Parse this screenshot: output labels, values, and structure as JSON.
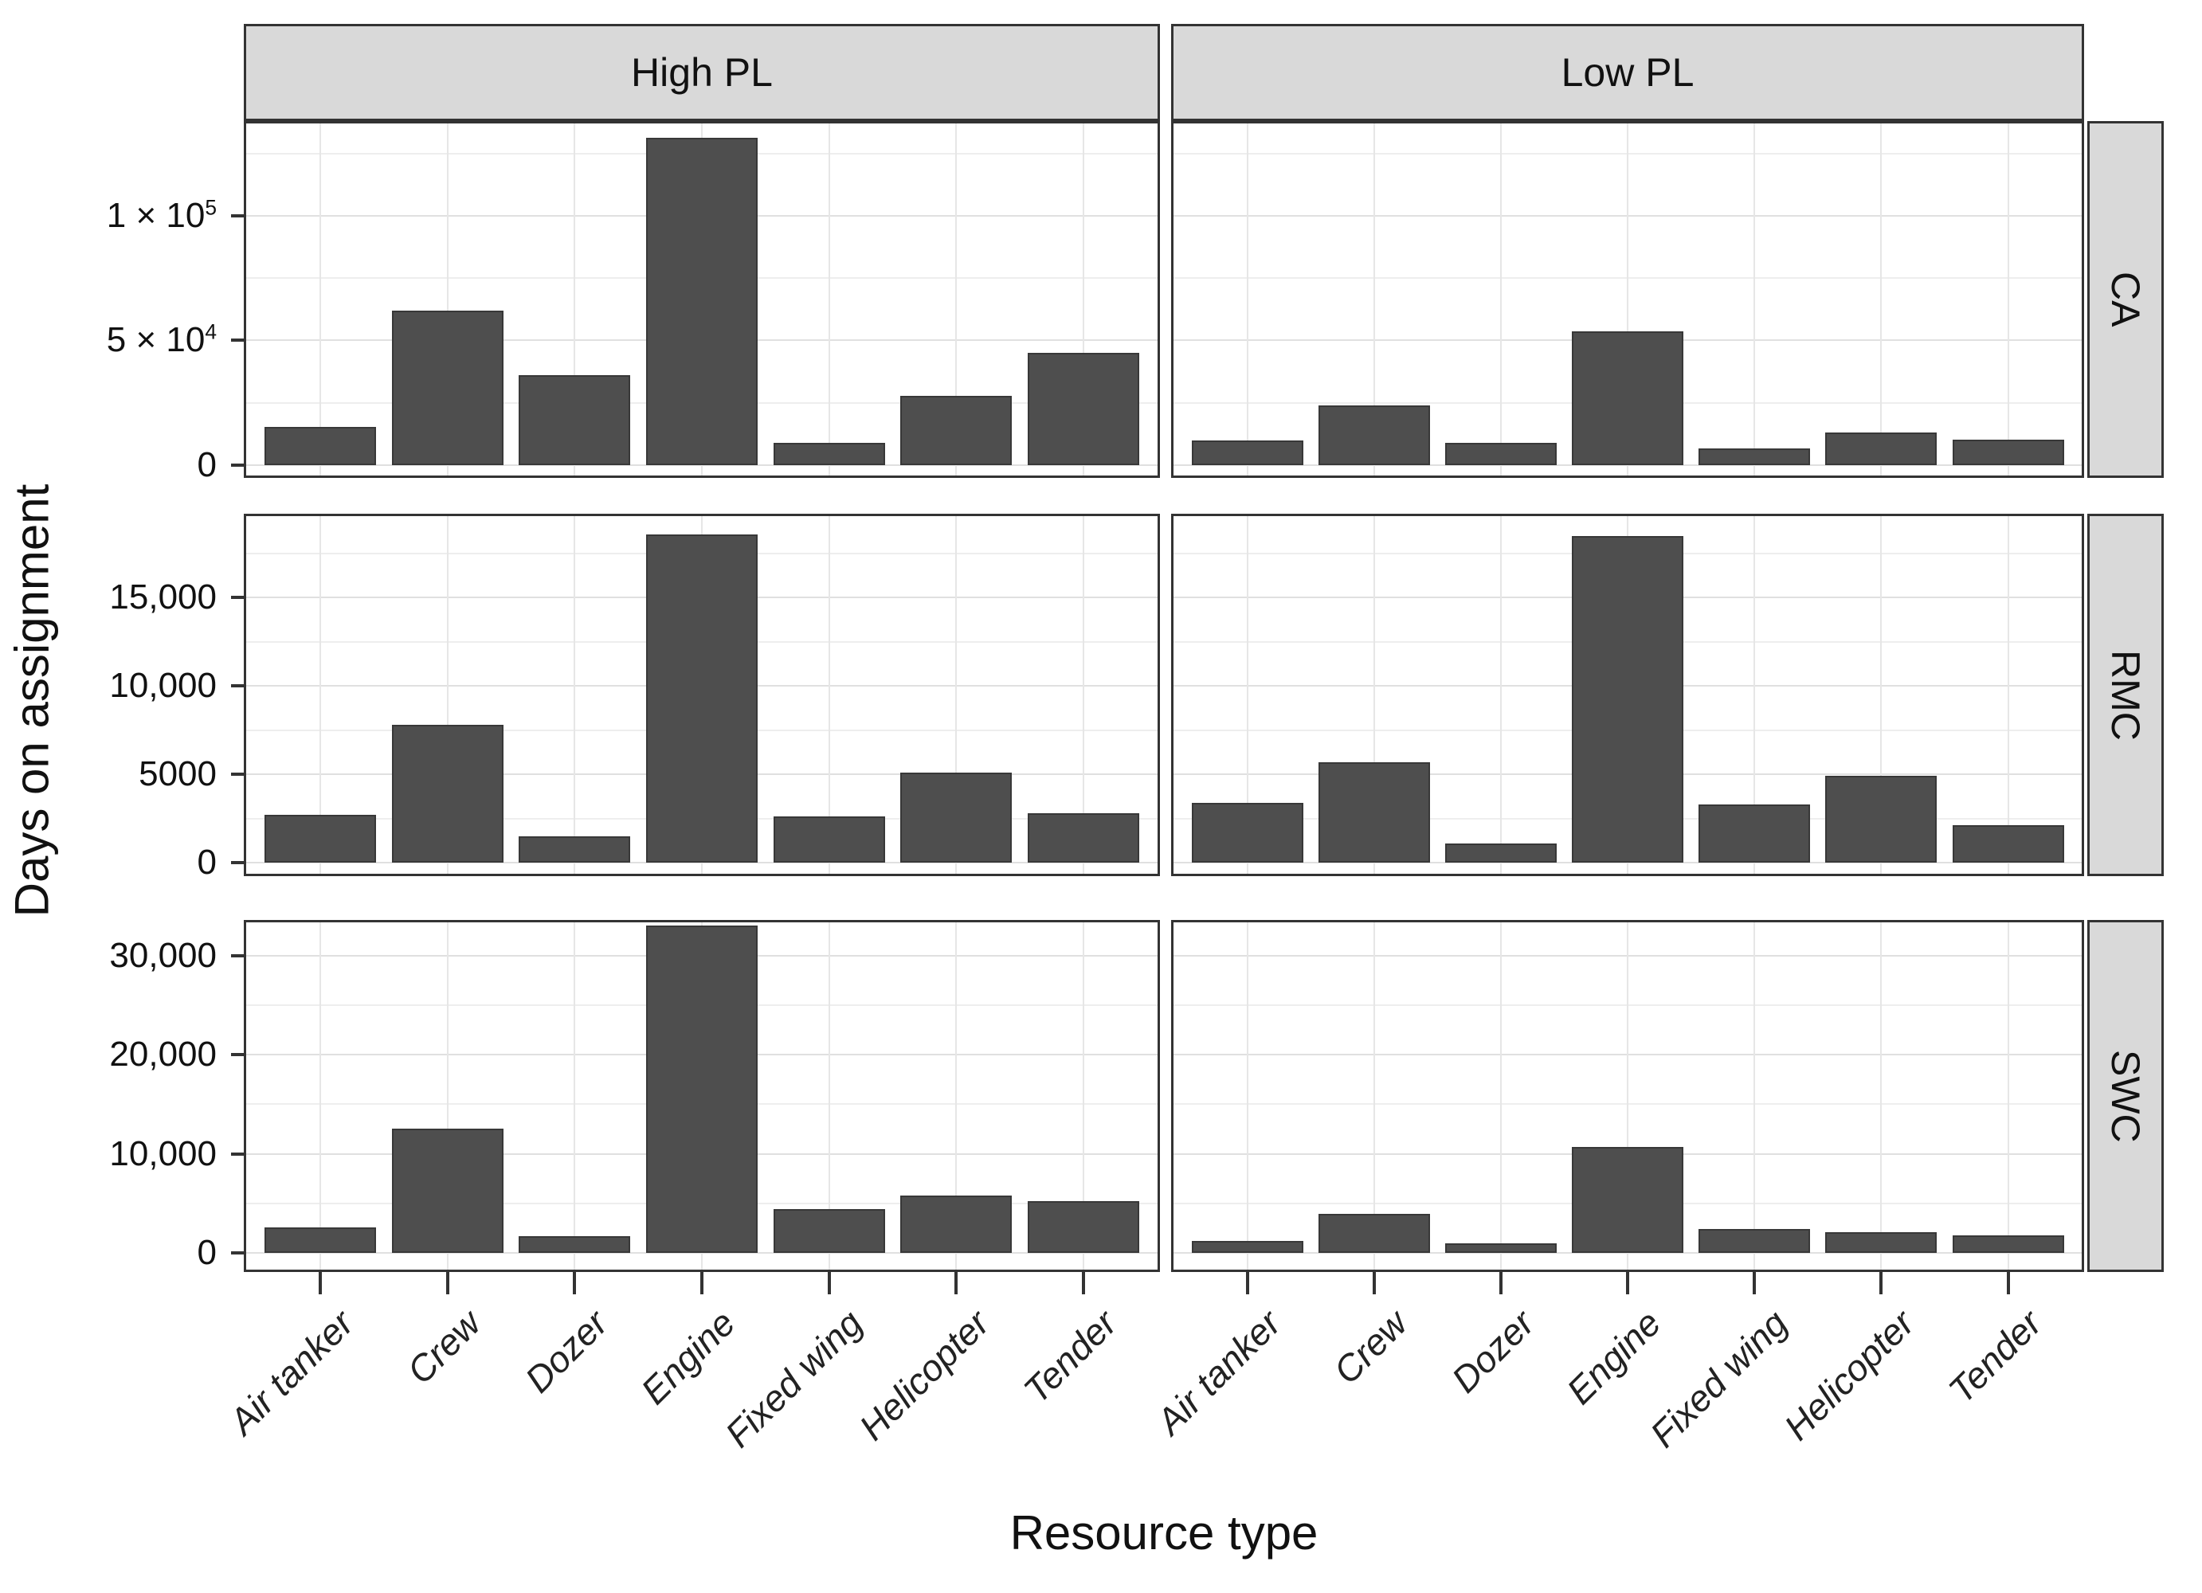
{
  "figure": {
    "x_axis_title": "Resource type",
    "y_axis_title": "Days on assignment"
  },
  "chart_data": {
    "type": "bar",
    "title": "",
    "xlabel": "Resource type",
    "ylabel": "Days on assignment",
    "legend": null,
    "grid": true,
    "bar_color": "#4e4e4e",
    "strip_fill": "#d9d9d9",
    "panel_border_color": "#333333",
    "facet_cols": [
      "High PL",
      "Low PL"
    ],
    "facet_rows": [
      "CA",
      "RMC",
      "SWC"
    ],
    "categories": [
      "Air tanker",
      "Crew",
      "Dozer",
      "Engine",
      "Fixed wing",
      "Helicopter",
      "Tender"
    ],
    "facets": [
      {
        "row": "CA",
        "col": "High PL",
        "values": [
          15300,
          62000,
          36100,
          131300,
          8900,
          27800,
          45100
        ]
      },
      {
        "row": "CA",
        "col": "Low PL",
        "values": [
          9900,
          24000,
          8900,
          53700,
          6700,
          13100,
          10200
        ]
      },
      {
        "row": "RMC",
        "col": "High PL",
        "values": [
          2700,
          7800,
          1500,
          18600,
          2600,
          5100,
          2800
        ]
      },
      {
        "row": "RMC",
        "col": "Low PL",
        "values": [
          3400,
          5700,
          1100,
          18500,
          3300,
          4900,
          2100
        ]
      },
      {
        "row": "SWC",
        "col": "High PL",
        "values": [
          2600,
          12500,
          1700,
          33000,
          4400,
          5800,
          5200
        ]
      },
      {
        "row": "SWC",
        "col": "Low PL",
        "values": [
          1200,
          3900,
          1000,
          10700,
          2400,
          2100,
          1800
        ]
      }
    ],
    "row_axes": [
      {
        "row": "CA",
        "ylim": [
          0,
          138000
        ],
        "major_ticks": [
          {
            "value": 0,
            "label": "0"
          },
          {
            "value": 50000,
            "label": "5 × 10^4"
          },
          {
            "value": 100000,
            "label": "1 × 10^5"
          }
        ],
        "minor_ticks": [
          25000,
          75000,
          125000
        ]
      },
      {
        "row": "RMC",
        "ylim": [
          0,
          19750
        ],
        "major_ticks": [
          {
            "value": 0,
            "label": "0"
          },
          {
            "value": 5000,
            "label": "5000"
          },
          {
            "value": 10000,
            "label": "10,000"
          },
          {
            "value": 15000,
            "label": "15,000"
          }
        ],
        "minor_ticks": [
          2500,
          7500,
          12500,
          17500
        ]
      },
      {
        "row": "SWC",
        "ylim": [
          0,
          33600
        ],
        "major_ticks": [
          {
            "value": 0,
            "label": "0"
          },
          {
            "value": 10000,
            "label": "10,000"
          },
          {
            "value": 20000,
            "label": "20,000"
          },
          {
            "value": 30000,
            "label": "30,000"
          }
        ],
        "minor_ticks": [
          5000,
          15000,
          25000
        ]
      }
    ]
  }
}
